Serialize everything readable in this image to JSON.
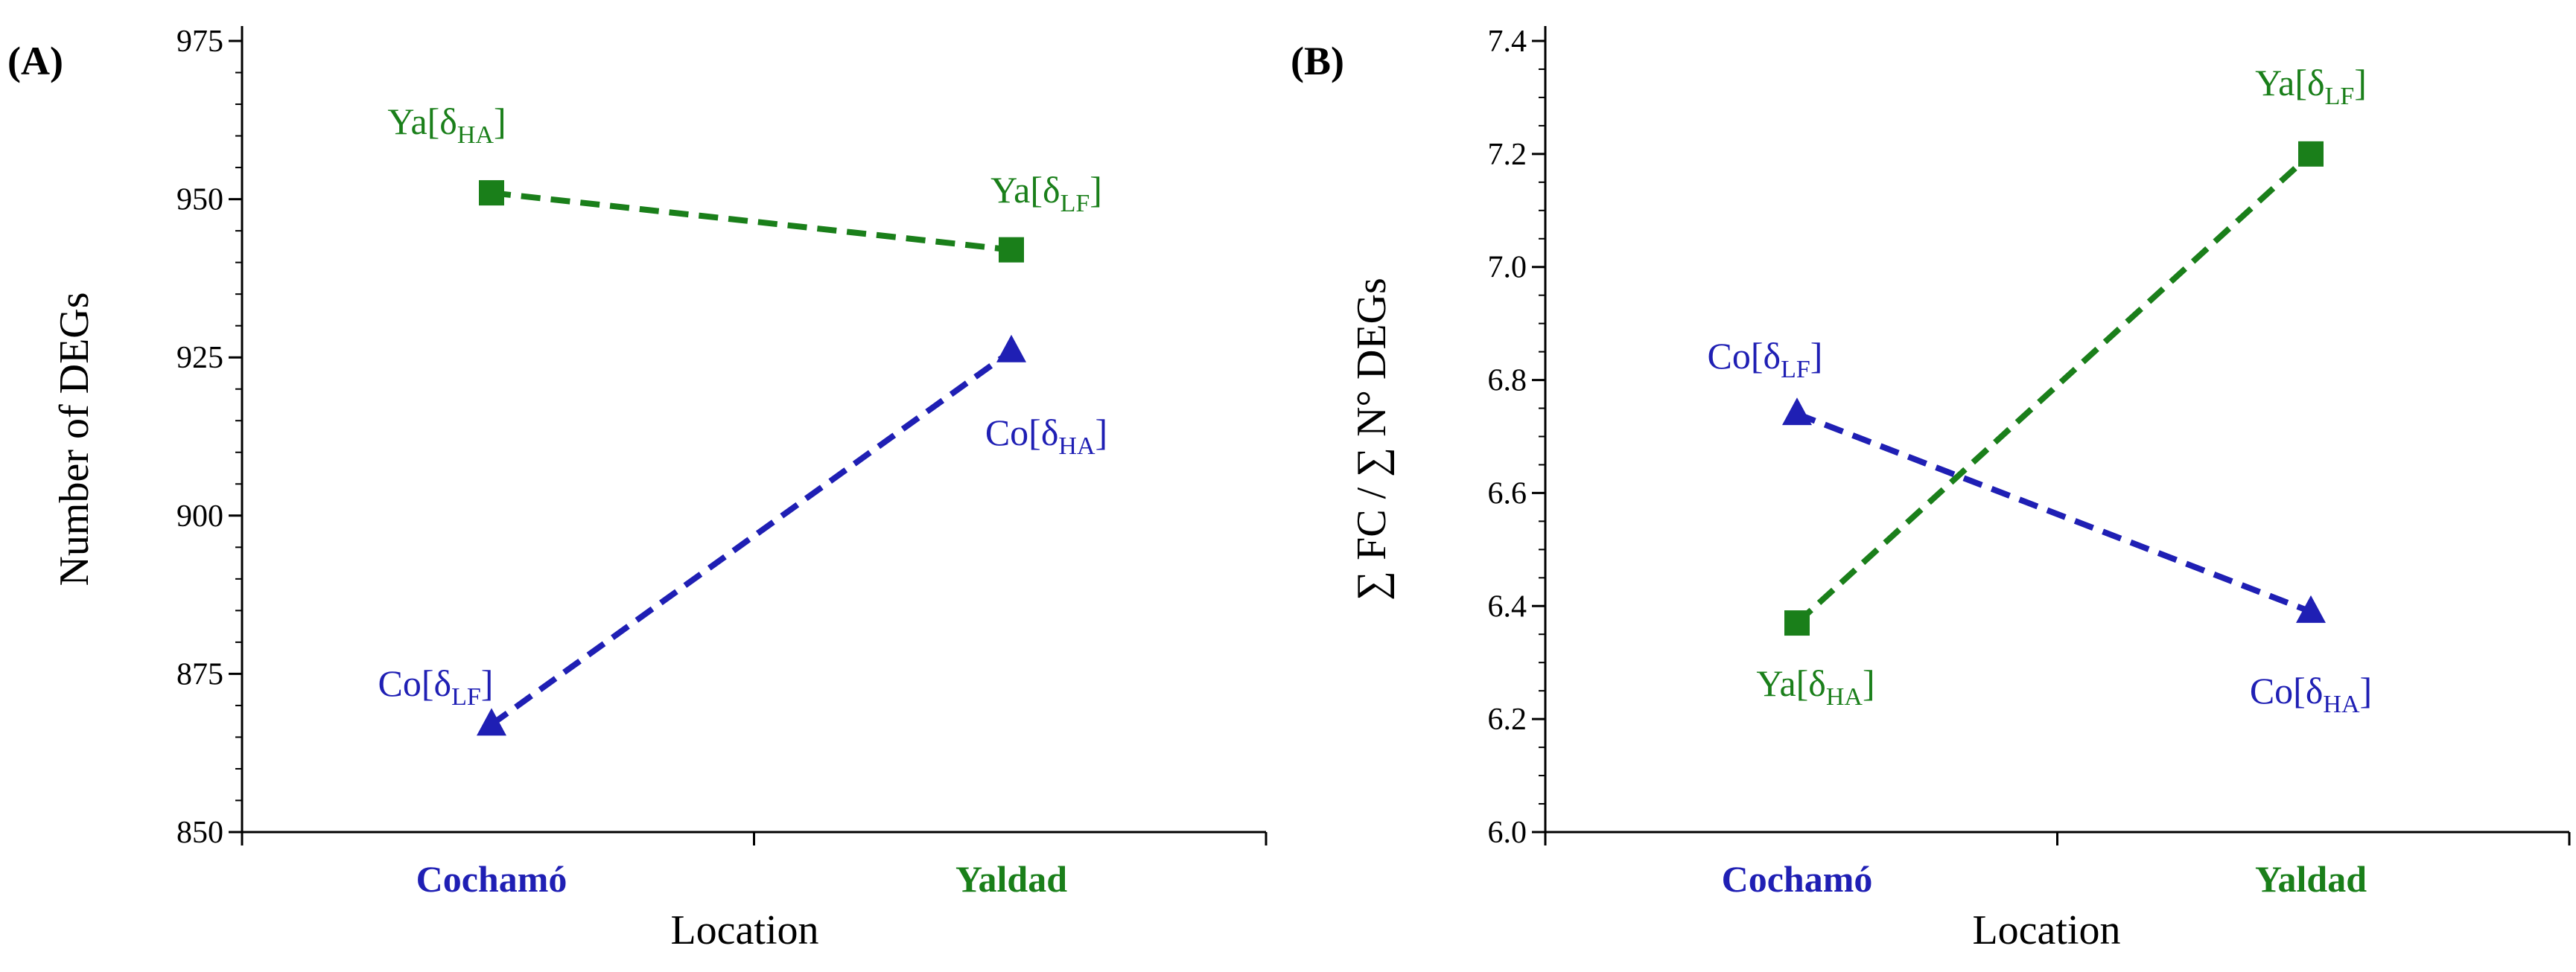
{
  "chart_data": [
    {
      "type": "line",
      "panel_label": "(A)",
      "xlabel": "Location",
      "ylabel": "Number of DEGs",
      "categories": [
        "Cochamó",
        "Yaldad"
      ],
      "category_colors": [
        "#1f1fb4",
        "#1a7f1a"
      ],
      "ylim": [
        850,
        975
      ],
      "yticks": [
        850,
        875,
        900,
        925,
        950,
        975
      ],
      "ytick_labels": [
        "850",
        "875",
        "900",
        "925",
        "950",
        "975"
      ],
      "series": [
        {
          "name": "green",
          "color": "#1a7f1a",
          "marker": "square",
          "values": [
            951,
            942
          ],
          "labels": [
            {
              "base": "Ya[δ",
              "sub": "HA",
              "close": "]"
            },
            {
              "base": "Ya[δ",
              "sub": "LF",
              "close": "]"
            }
          ]
        },
        {
          "name": "blue",
          "color": "#1f1fb4",
          "marker": "triangle",
          "values": [
            867,
            926
          ],
          "labels": [
            {
              "base": "Co[δ",
              "sub": "LF",
              "close": "]"
            },
            {
              "base": "Co[δ",
              "sub": "HA",
              "close": "]"
            }
          ]
        }
      ]
    },
    {
      "type": "line",
      "panel_label": "(B)",
      "xlabel": "Location",
      "ylabel": "∑ FC / ∑ N° DEGs",
      "categories": [
        "Cochamó",
        "Yaldad"
      ],
      "category_colors": [
        "#1f1fb4",
        "#1a7f1a"
      ],
      "ylim": [
        6.0,
        7.4
      ],
      "yticks": [
        6.0,
        6.2,
        6.4,
        6.6,
        6.8,
        7.0,
        7.2,
        7.4
      ],
      "ytick_labels": [
        "6.0",
        "6.2",
        "6.4",
        "6.6",
        "6.8",
        "7.0",
        "7.2",
        "7.4"
      ],
      "series": [
        {
          "name": "green",
          "color": "#1a7f1a",
          "marker": "square",
          "values": [
            6.37,
            7.2
          ],
          "labels": [
            {
              "base": "Ya[δ",
              "sub": "HA",
              "close": "]"
            },
            {
              "base": "Ya[δ",
              "sub": "LF",
              "close": "]"
            }
          ]
        },
        {
          "name": "blue",
          "color": "#1f1fb4",
          "marker": "triangle",
          "values": [
            6.74,
            6.39
          ],
          "labels": [
            {
              "base": "Co[δ",
              "sub": "LF",
              "close": "]"
            },
            {
              "base": "Co[δ",
              "sub": "HA",
              "close": "]"
            }
          ]
        }
      ]
    }
  ]
}
